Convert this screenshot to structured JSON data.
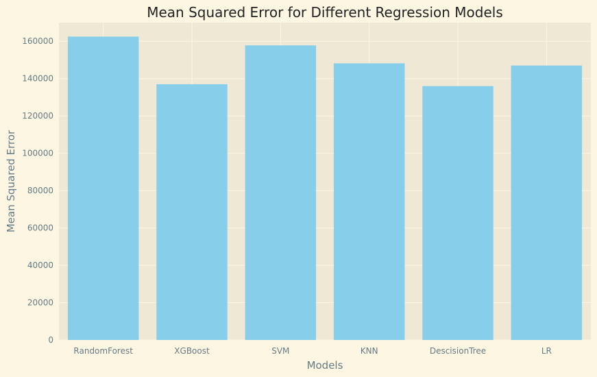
{
  "chart_data": {
    "type": "bar",
    "title": "Mean Squared Error for Different Regression Models",
    "xlabel": "Models",
    "ylabel": "Mean Squared Error",
    "categories": [
      "RandomForest",
      "XGBoost",
      "SVM",
      "KNN",
      "DescisionTree",
      "LR"
    ],
    "values": [
      162500,
      137000,
      157800,
      148200,
      136000,
      147000
    ],
    "ylim": [
      0,
      170000
    ],
    "yticks": [
      0,
      20000,
      40000,
      60000,
      80000,
      100000,
      120000,
      140000,
      160000
    ],
    "ytick_labels": [
      "0",
      "20000",
      "40000",
      "60000",
      "80000",
      "100000",
      "120000",
      "140000",
      "160000"
    ],
    "grid": true,
    "colors": {
      "figure_bg": "#fdf6e3",
      "plot_bg": "#eee8d5",
      "bar": "#87ceeb",
      "grid": "#fdf6e3",
      "text": "#657b83",
      "title": "#222222"
    }
  }
}
